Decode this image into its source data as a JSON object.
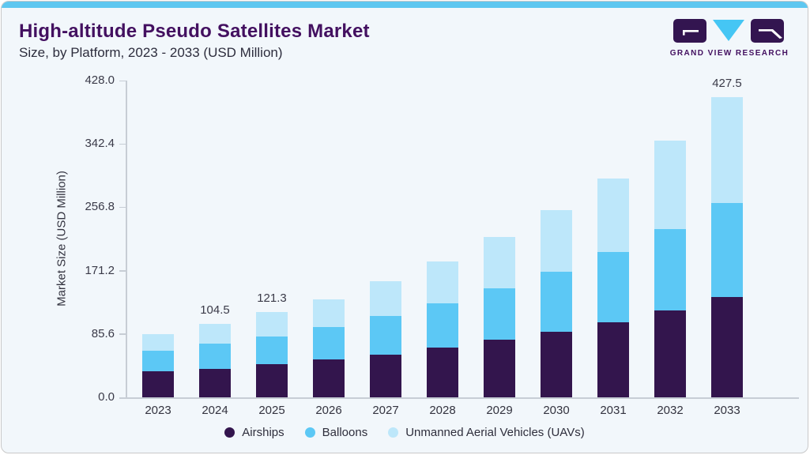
{
  "header": {
    "title": "High-altitude Pseudo Satellites Market",
    "subtitle": "Size, by Platform, 2023 - 2033 (USD Million)",
    "brand": "GRAND VIEW RESEARCH"
  },
  "colors": {
    "airships": "#33154d",
    "balloons": "#5cc8f5",
    "uavs": "#bde7fa",
    "accent_strip": "#5ec7f0",
    "title_text": "#431060",
    "logo_block": "#331550",
    "logo_triangle": "#45c6f4"
  },
  "chart_data": {
    "type": "bar",
    "stacked": true,
    "title": "High-altitude Pseudo Satellites Market Size, by Platform, 2023 - 2033 (USD Million)",
    "ylabel": "Market Size (USD Million)",
    "xlabel": "",
    "grid": false,
    "legend_position": "bottom",
    "ylim": [
      0,
      428
    ],
    "y_ticks": [
      {
        "value": 0.0,
        "label": "0.0"
      },
      {
        "value": 85.6,
        "label": "85.6"
      },
      {
        "value": 171.2,
        "label": "171.2"
      },
      {
        "value": 256.8,
        "label": "256.8"
      },
      {
        "value": 342.4,
        "label": "342.4"
      },
      {
        "value": 428.0,
        "label": "428.0"
      }
    ],
    "categories": [
      "2023",
      "2024",
      "2025",
      "2026",
      "2027",
      "2028",
      "2029",
      "2030",
      "2031",
      "2032",
      "2033"
    ],
    "series": [
      {
        "name": "Airships",
        "color_key": "airships",
        "values": [
          36.8,
          40.5,
          46.9,
          53.7,
          60.4,
          71.2,
          81.8,
          93.7,
          107.2,
          123.8,
          142.5
        ]
      },
      {
        "name": "Balloons",
        "color_key": "balloons",
        "values": [
          29.9,
          35.7,
          39.4,
          46.1,
          55.1,
          63.0,
          73.1,
          84.8,
          100.2,
          115.5,
          134.3
        ]
      },
      {
        "name": "Unmanned Aerial Vehicles (UAVs)",
        "color_key": "uavs",
        "values": [
          23.0,
          28.3,
          35.0,
          40.0,
          49.5,
          59.3,
          73.1,
          87.8,
          103.9,
          126.7,
          150.7
        ]
      }
    ],
    "totals": [
      89.7,
      104.5,
      121.3,
      139.8,
      165.0,
      193.5,
      228.0,
      266.3,
      311.3,
      366.0,
      427.5
    ],
    "bar_value_labels": [
      "",
      "104.5",
      "121.3",
      "",
      "",
      "",
      "",
      "",
      "",
      "",
      "427.5"
    ]
  }
}
